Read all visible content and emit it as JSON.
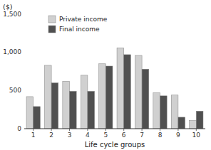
{
  "chart_data": {
    "type": "bar",
    "xlabel": "Life cycle groups",
    "annotation": "($)",
    "categories": [
      "1",
      "2",
      "3",
      "4",
      "5",
      "6",
      "7",
      "8",
      "9",
      "10"
    ],
    "series": [
      {
        "name": "Private income",
        "color": "#d0d0d0",
        "values": [
          420,
          830,
          620,
          700,
          850,
          1060,
          960,
          470,
          440,
          110
        ]
      },
      {
        "name": "Final income",
        "color": "#505050",
        "values": [
          290,
          600,
          490,
          490,
          820,
          970,
          780,
          430,
          150,
          230
        ]
      }
    ],
    "ylim": [
      0,
      1500
    ],
    "yticks": [
      0,
      500,
      {
        "value": 1000,
        "label": "1,000"
      },
      {
        "value": 1500,
        "label": "1,500"
      }
    ],
    "grid": false,
    "legend": "upper left"
  }
}
